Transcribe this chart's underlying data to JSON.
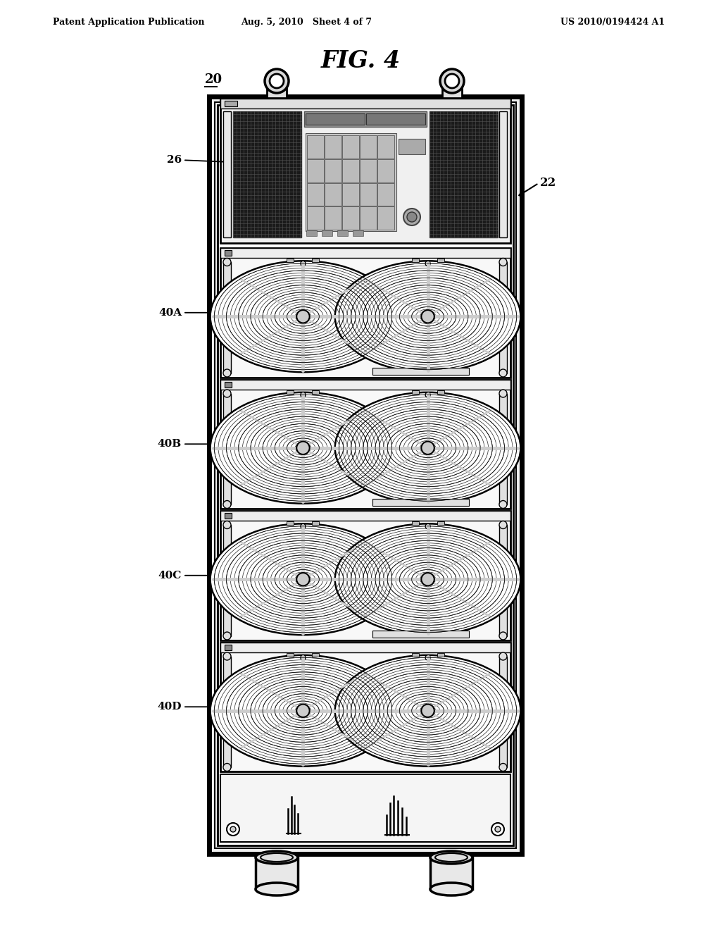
{
  "header_left": "Patent Application Publication",
  "header_center": "Aug. 5, 2010   Sheet 4 of 7",
  "header_right": "US 2010/0194424 A1",
  "fig_title": "FIG. 4",
  "label_20": "20",
  "label_22": "22",
  "label_26": "26",
  "label_40A": "40A",
  "label_40B": "40B",
  "label_40C": "40C",
  "label_40D": "40D",
  "bg_color": "#ffffff",
  "line_color": "#000000"
}
